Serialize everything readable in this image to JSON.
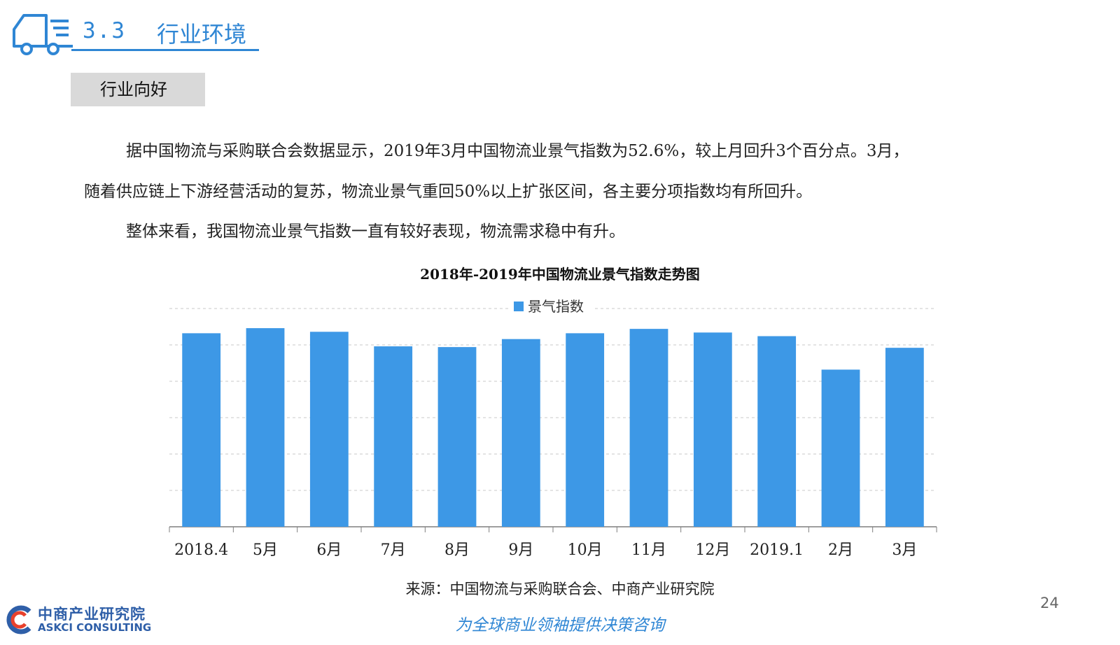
{
  "header": {
    "section_number": "3.3",
    "section_title": "行业环境"
  },
  "tag": {
    "label": "行业向好"
  },
  "paragraphs": {
    "p1_line1": "据中国物流与采购联合会数据显示，2019年3月中国物流业景气指数为52.6%，较上月回升3个百分点。3月，",
    "p1_line2": "随着供应链上下游经营活动的复苏，物流业景气重回50%以上扩张区间，各主要分项指数均有所回升。",
    "p2": "整体来看，我国物流业景气指数一直有较好表现，物流需求稳中有升。"
  },
  "chart_data": {
    "type": "bar",
    "title": "2018年-2019年中国物流业景气指数走势图",
    "categories": [
      "2018.4",
      "5月",
      "6月",
      "7月",
      "8月",
      "9月",
      "10月",
      "11月",
      "12月",
      "2019.1",
      "2月",
      "3月"
    ],
    "series": [
      {
        "name": "景气指数",
        "values": [
          54.6,
          55.3,
          54.8,
          52.8,
          52.7,
          53.8,
          54.6,
          55.2,
          54.7,
          54.2,
          49.6,
          52.6
        ]
      }
    ],
    "ylim": [
      28,
      58
    ],
    "grid": true,
    "legend": "top-center",
    "bar_color": "#3d98e6"
  },
  "source": "来源：中国物流与采购联合会、中商产业研究院",
  "page_number": "24",
  "slogan": "为全球商业领袖提供决策咨询",
  "logo": {
    "cn": "中商产业研究院",
    "en": "ASKCI CONSULTING"
  },
  "colors": {
    "accent": "#2f86d4",
    "bar": "#3d98e6"
  }
}
